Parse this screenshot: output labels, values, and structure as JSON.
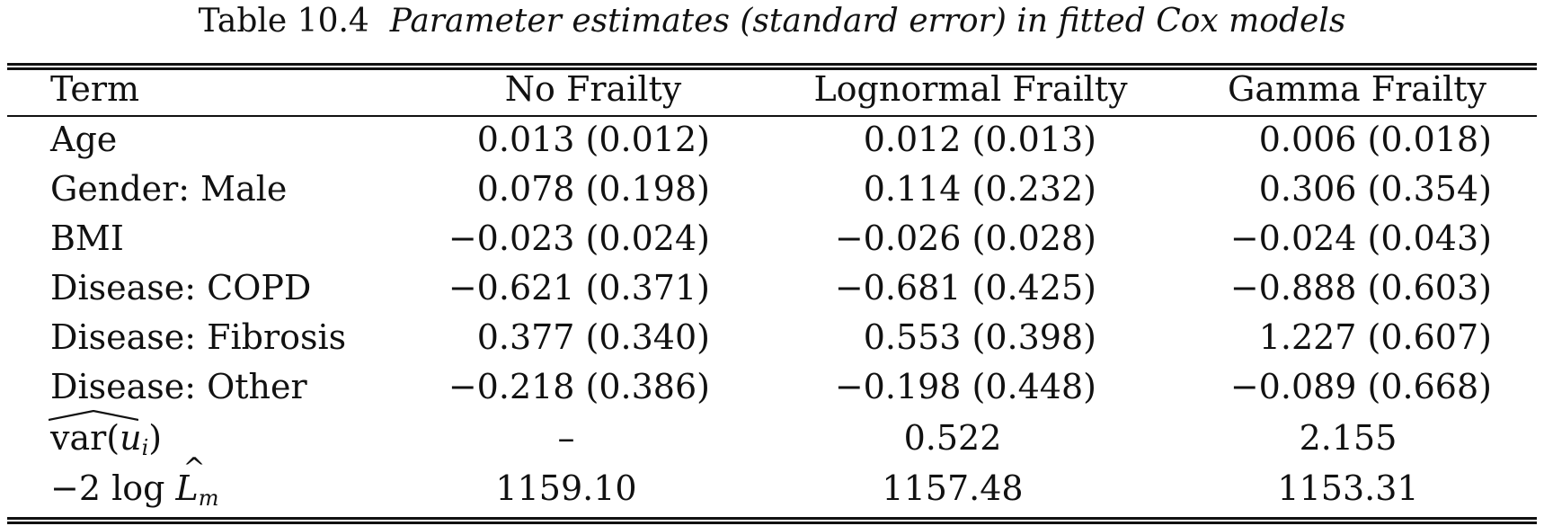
{
  "caption": {
    "label": "Table 10.4",
    "title": "Parameter estimates (standard error) in fitted Cox models"
  },
  "header": {
    "term": "Term",
    "no_frailty": "No Frailty",
    "lognormal": "Lognormal Frailty",
    "gamma": "Gamma Frailty"
  },
  "rows": [
    {
      "term": "Age",
      "no_frailty": "0.013 (0.012)",
      "lognormal": "0.012 (0.013)",
      "gamma": "0.006 (0.018)"
    },
    {
      "term": "Gender: Male",
      "no_frailty": "0.078 (0.198)",
      "lognormal": "0.114 (0.232)",
      "gamma": "0.306 (0.354)"
    },
    {
      "term": "BMI",
      "no_frailty": "−0.023 (0.024)",
      "lognormal": "−0.026 (0.028)",
      "gamma": "−0.024 (0.043)"
    },
    {
      "term": "Disease: COPD",
      "no_frailty": "−0.621 (0.371)",
      "lognormal": "−0.681 (0.425)",
      "gamma": "−0.888 (0.603)"
    },
    {
      "term": "Disease: Fibrosis",
      "no_frailty": "0.377 (0.340)",
      "lognormal": "0.553 (0.398)",
      "gamma": "1.227 (0.607)"
    },
    {
      "term": "Disease: Other",
      "no_frailty": "−0.218 (0.386)",
      "lognormal": "−0.198 (0.448)",
      "gamma": "−0.089 (0.668)"
    }
  ],
  "var_row": {
    "var_word": "var",
    "paren_open": "(",
    "u": "u",
    "sub_i": "i",
    "paren_close": ")",
    "no_frailty": "–",
    "lognormal": "0.522",
    "gamma": "2.155"
  },
  "loglik_row": {
    "prefix": "−2 log ",
    "L": "L",
    "hat": "^",
    "sub_m": "m",
    "no_frailty": "1159.10",
    "lognormal": "1157.48",
    "gamma": "1153.31"
  }
}
